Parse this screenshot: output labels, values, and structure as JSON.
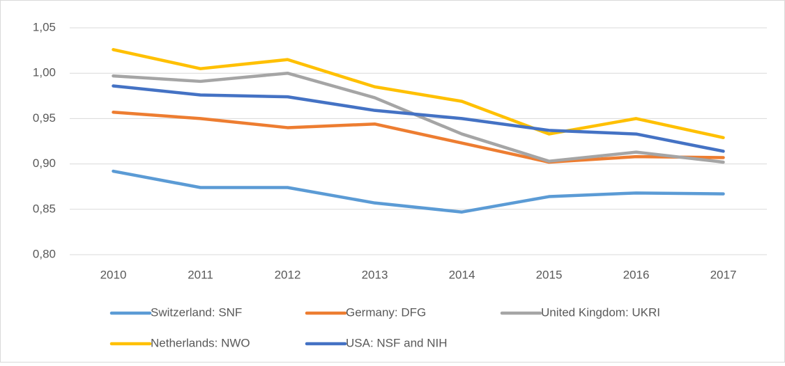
{
  "chart_data": {
    "type": "line",
    "categories": [
      "2010",
      "2011",
      "2012",
      "2013",
      "2014",
      "2015",
      "2016",
      "2017"
    ],
    "series": [
      {
        "name": "Switzerland: SNF",
        "color": "#5b9bd5",
        "values": [
          0.892,
          0.874,
          0.874,
          0.857,
          0.847,
          0.864,
          0.868,
          0.867
        ]
      },
      {
        "name": "Germany: DFG",
        "color": "#ed7d31",
        "values": [
          0.957,
          0.95,
          0.94,
          0.944,
          0.923,
          0.902,
          0.908,
          0.907
        ]
      },
      {
        "name": "United Kingdom: UKRI",
        "color": "#a5a5a5",
        "values": [
          0.997,
          0.991,
          1.0,
          0.973,
          0.933,
          0.903,
          0.913,
          0.902
        ]
      },
      {
        "name": "Netherlands: NWO",
        "color": "#ffc000",
        "values": [
          1.026,
          1.005,
          1.015,
          0.985,
          0.969,
          0.933,
          0.95,
          0.929
        ]
      },
      {
        "name": "USA: NSF and NIH",
        "color": "#4472c4",
        "values": [
          0.986,
          0.976,
          0.974,
          0.959,
          0.95,
          0.937,
          0.933,
          0.914
        ]
      }
    ],
    "ylim": [
      0.8,
      1.05
    ],
    "yticks": [
      {
        "value": 0.8,
        "label": "0,80"
      },
      {
        "value": 0.85,
        "label": "0,85"
      },
      {
        "value": 0.9,
        "label": "0,90"
      },
      {
        "value": 0.95,
        "label": "0,95"
      },
      {
        "value": 1.0,
        "label": "1,00"
      },
      {
        "value": 1.05,
        "label": "1,05"
      }
    ],
    "grid": true,
    "legend": "bottom"
  }
}
